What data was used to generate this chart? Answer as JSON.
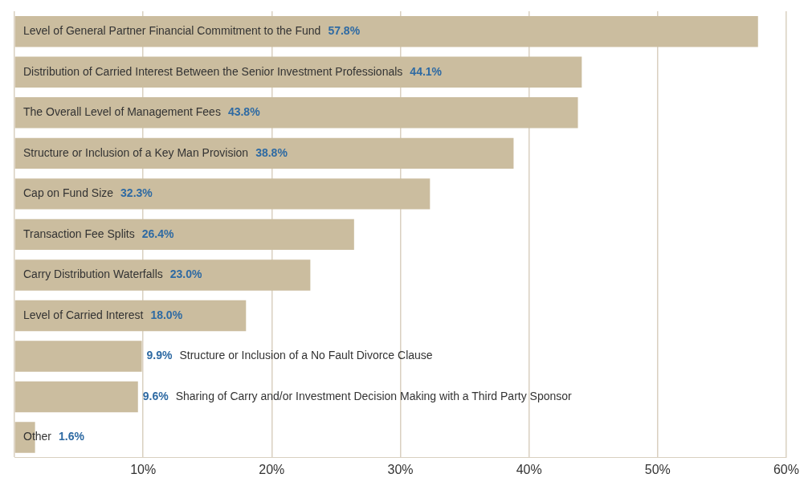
{
  "chart_data": {
    "type": "bar",
    "orientation": "horizontal",
    "categories": [
      "Level of General Partner Financial Commitment to the Fund",
      "Distribution of Carried Interest Between the Senior Investment Professionals",
      "The Overall Level of Management Fees",
      "Structure or Inclusion of a Key Man Provision",
      "Cap on Fund Size",
      "Transaction Fee Splits",
      "Carry Distribution Waterfalls",
      "Level of Carried Interest",
      "Structure or Inclusion of a No Fault Divorce Clause",
      "Sharing of Carry and/or Investment Decision Making with a Third Party Sponsor",
      "Other"
    ],
    "values": [
      57.8,
      44.1,
      43.8,
      38.8,
      32.3,
      26.4,
      23.0,
      18.0,
      9.9,
      9.6,
      1.6
    ],
    "value_labels": [
      "57.8%",
      "44.1%",
      "43.8%",
      "38.8%",
      "32.3%",
      "26.4%",
      "23.0%",
      "18.0%",
      "9.9%",
      "9.6%",
      "1.6%"
    ],
    "color": "#cbbd9f",
    "xlim": [
      0,
      60
    ],
    "xticks": [
      {
        "value": 0,
        "label": null
      },
      {
        "value": 10,
        "label": "10%"
      },
      {
        "value": 20,
        "label": "20%"
      },
      {
        "value": 30,
        "label": "30%"
      },
      {
        "value": 40,
        "label": "40%"
      },
      {
        "value": 50,
        "label": "50%"
      },
      {
        "value": 60,
        "label": "60%"
      }
    ],
    "grid": "x"
  }
}
